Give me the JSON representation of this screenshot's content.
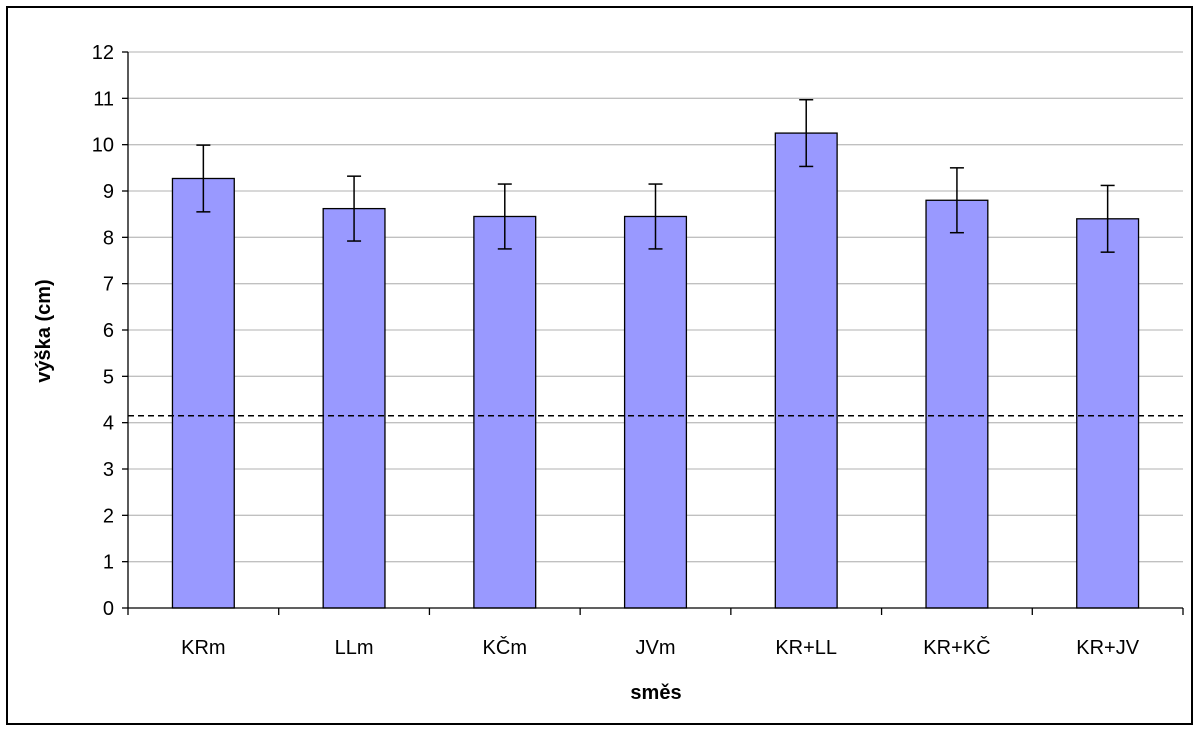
{
  "chart_data": {
    "type": "bar",
    "title": "",
    "xlabel": "směs",
    "ylabel": "výška (cm)",
    "categories": [
      "KRm",
      "LLm",
      "KČm",
      "JVm",
      "KR+LL",
      "KR+KČ",
      "KR+JV"
    ],
    "values": [
      9.27,
      8.62,
      8.45,
      8.45,
      10.25,
      8.8,
      8.4
    ],
    "error": [
      0.72,
      0.7,
      0.7,
      0.7,
      0.72,
      0.7,
      0.72
    ],
    "reference_line": 4.15,
    "ylim": [
      0,
      12
    ],
    "yticks": [
      "0",
      "1",
      "2",
      "3",
      "4",
      "5",
      "6",
      "7",
      "8",
      "9",
      "10",
      "11",
      "12"
    ],
    "grid": "horizontal",
    "legend": "none",
    "bar_color": "#9999ff",
    "bar_edge_color": "#000000",
    "grid_color": "#c0c0c0"
  }
}
